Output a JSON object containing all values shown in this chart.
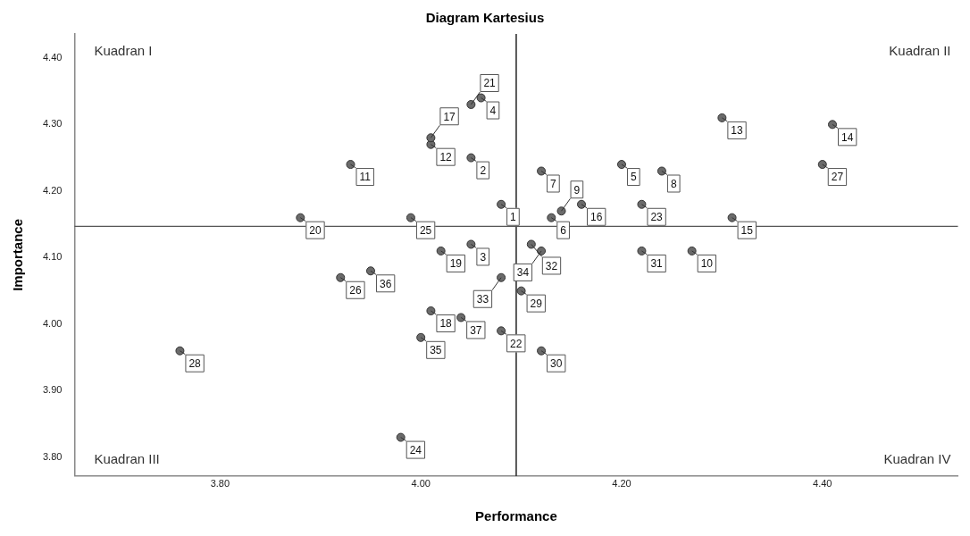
{
  "chart_data": {
    "type": "scatter",
    "title": "Diagram Kartesius",
    "xlabel": "Performance",
    "ylabel": "Importance",
    "series": [
      {
        "color": "#6b6b6b",
        "x": [
          4.08,
          4.05,
          4.05,
          4.06,
          4.2,
          4.13,
          4.12,
          4.24,
          4.14,
          4.27,
          3.93,
          4.01,
          4.3,
          4.41,
          4.31,
          4.16,
          4.01,
          4.01,
          4.02,
          3.88,
          4.05,
          4.08,
          4.22,
          3.98,
          3.99,
          3.92,
          4.4,
          3.76,
          4.1,
          4.12,
          4.22,
          4.11,
          4.08,
          4.12,
          4.0,
          3.95,
          4.04
        ],
        "values": [
          4.18,
          4.25,
          4.12,
          4.34,
          4.24,
          4.16,
          4.23,
          4.23,
          4.17,
          4.11,
          4.24,
          4.27,
          4.31,
          4.3,
          4.16,
          4.18,
          4.28,
          4.02,
          4.11,
          4.16,
          4.33,
          3.99,
          4.18,
          3.83,
          4.16,
          4.07,
          4.24,
          3.96,
          4.05,
          3.96,
          4.11,
          4.12,
          4.07,
          4.11,
          3.98,
          4.08,
          4.01
        ]
      }
    ],
    "xlim": [
      3.655,
      4.535
    ],
    "ylim": [
      3.772,
      4.436
    ],
    "xticks": [
      {
        "value": 3.8,
        "label": "3.80"
      },
      {
        "value": 4.0,
        "label": "4.00"
      },
      {
        "value": 4.2,
        "label": "4.20"
      },
      {
        "value": 4.4,
        "label": "4.40"
      }
    ],
    "yticks": [
      {
        "value": 3.8,
        "label": "3.80"
      },
      {
        "value": 3.9,
        "label": "3.90"
      },
      {
        "value": 4.0,
        "label": "4.00"
      },
      {
        "value": 4.1,
        "label": "4.10"
      },
      {
        "value": 4.2,
        "label": "4.20"
      },
      {
        "value": 4.3,
        "label": "4.30"
      },
      {
        "value": 4.4,
        "label": "4.40"
      }
    ],
    "ref_lines": [
      {
        "axis": "x",
        "value": 4.095,
        "color": "#000000"
      },
      {
        "axis": "y",
        "value": 4.147,
        "color": "#555555"
      }
    ],
    "annotations": [
      "Kuadran I",
      "Kuadran II",
      "Kuadran III",
      "Kuadran IV",
      {
        "text": "1",
        "x": 4.08,
        "y": 4.18
      },
      {
        "text": "2",
        "x": 4.05,
        "y": 4.25
      },
      {
        "text": "3",
        "x": 4.05,
        "y": 4.12
      },
      {
        "text": "4",
        "x": 4.06,
        "y": 4.34
      },
      {
        "text": "5",
        "x": 4.2,
        "y": 4.24
      },
      {
        "text": "6",
        "x": 4.13,
        "y": 4.16
      },
      {
        "text": "7",
        "x": 4.12,
        "y": 4.23
      },
      {
        "text": "8",
        "x": 4.24,
        "y": 4.23
      },
      {
        "text": "9",
        "x": 4.14,
        "y": 4.17
      },
      {
        "text": "10",
        "x": 4.27,
        "y": 4.11
      },
      {
        "text": "11",
        "x": 3.93,
        "y": 4.24
      },
      {
        "text": "12",
        "x": 4.01,
        "y": 4.27
      },
      {
        "text": "13",
        "x": 4.3,
        "y": 4.31
      },
      {
        "text": "14",
        "x": 4.41,
        "y": 4.3
      },
      {
        "text": "15",
        "x": 4.31,
        "y": 4.16
      },
      {
        "text": "16",
        "x": 4.16,
        "y": 4.18
      },
      {
        "text": "17",
        "x": 4.01,
        "y": 4.28
      },
      {
        "text": "18",
        "x": 4.01,
        "y": 4.02
      },
      {
        "text": "19",
        "x": 4.02,
        "y": 4.11
      },
      {
        "text": "20",
        "x": 3.88,
        "y": 4.16
      },
      {
        "text": "21",
        "x": 4.05,
        "y": 4.33
      },
      {
        "text": "22",
        "x": 4.08,
        "y": 3.99
      },
      {
        "text": "23",
        "x": 4.22,
        "y": 4.18
      },
      {
        "text": "24",
        "x": 3.98,
        "y": 3.83
      },
      {
        "text": "25",
        "x": 3.99,
        "y": 4.16
      },
      {
        "text": "26",
        "x": 3.92,
        "y": 4.07
      },
      {
        "text": "27",
        "x": 4.4,
        "y": 4.24
      },
      {
        "text": "28",
        "x": 3.76,
        "y": 3.96
      },
      {
        "text": "29",
        "x": 4.1,
        "y": 4.05
      },
      {
        "text": "30",
        "x": 4.12,
        "y": 3.96
      },
      {
        "text": "31",
        "x": 4.22,
        "y": 4.11
      },
      {
        "text": "32",
        "x": 4.11,
        "y": 4.12
      },
      {
        "text": "33",
        "x": 4.08,
        "y": 4.07
      },
      {
        "text": "34",
        "x": 4.12,
        "y": 4.11
      },
      {
        "text": "35",
        "x": 4.0,
        "y": 3.98
      },
      {
        "text": "36",
        "x": 3.95,
        "y": 4.08
      },
      {
        "text": "37",
        "x": 4.04,
        "y": 4.01
      }
    ],
    "grid": false,
    "legend": false,
    "marker": "circle"
  }
}
